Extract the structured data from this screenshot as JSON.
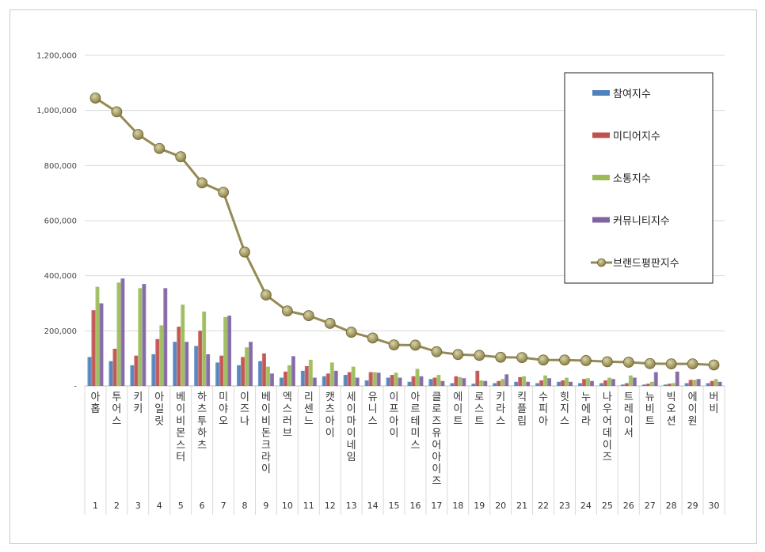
{
  "chart_data": {
    "type": "bar",
    "title": "",
    "xlabel": "",
    "ylabel": "",
    "ylim": [
      0,
      1200000
    ],
    "yticks": [
      0,
      200000,
      400000,
      600000,
      800000,
      1000000,
      1200000
    ],
    "ytick_labels": [
      "-",
      "200,000",
      "400,000",
      "600,000",
      "800,000",
      "1,000,000",
      "1,200,000"
    ],
    "grid": true,
    "legend_position": "right",
    "categories": [
      "아홉",
      "투어스",
      "키키",
      "아일릿",
      "베이비몬스터",
      "하츠투하츠",
      "미야오",
      "이즈나",
      "베이비돈크라이",
      "엑스러브",
      "리센느",
      "캣츠아이",
      "세이마이네임",
      "유니스",
      "이프아이",
      "아르테미스",
      "클로즈유어아이즈",
      "에이트",
      "로스트",
      "키라스",
      "킥플립",
      "수피아",
      "힛지스",
      "누에라",
      "나우어데이즈",
      "트레이서",
      "뉴비트",
      "빅오션",
      "에이원",
      "버비"
    ],
    "ranks": [
      "1",
      "2",
      "3",
      "4",
      "5",
      "6",
      "7",
      "8",
      "9",
      "10",
      "11",
      "12",
      "13",
      "14",
      "15",
      "16",
      "17",
      "18",
      "19",
      "20",
      "21",
      "22",
      "23",
      "24",
      "25",
      "26",
      "27",
      "28",
      "29",
      "30"
    ],
    "series": [
      {
        "name": "참여지수",
        "type": "bar",
        "color": "#4F81BD",
        "values": [
          105000,
          90000,
          75000,
          115000,
          160000,
          145000,
          85000,
          75000,
          90000,
          30000,
          55000,
          35000,
          40000,
          20000,
          30000,
          15000,
          25000,
          10000,
          8000,
          10000,
          15000,
          10000,
          15000,
          10000,
          10000,
          5000,
          5000,
          5000,
          10000,
          10000
        ]
      },
      {
        "name": "미디어지수",
        "type": "bar",
        "color": "#C0504D",
        "values": [
          275000,
          135000,
          110000,
          170000,
          215000,
          200000,
          110000,
          105000,
          118000,
          52000,
          72000,
          45000,
          50000,
          50000,
          40000,
          35000,
          30000,
          35000,
          55000,
          18000,
          32000,
          20000,
          20000,
          25000,
          20000,
          10000,
          8000,
          8000,
          22000,
          18000
        ]
      },
      {
        "name": "소통지수",
        "type": "bar",
        "color": "#9BBB59",
        "values": [
          360000,
          375000,
          355000,
          220000,
          295000,
          270000,
          250000,
          140000,
          70000,
          75000,
          95000,
          85000,
          70000,
          50000,
          48000,
          62000,
          40000,
          32000,
          20000,
          25000,
          35000,
          38000,
          30000,
          28000,
          30000,
          38000,
          15000,
          10000,
          22000,
          25000
        ]
      },
      {
        "name": "커뮤니티지수",
        "type": "bar",
        "color": "#8064A2",
        "values": [
          300000,
          390000,
          370000,
          355000,
          160000,
          115000,
          255000,
          160000,
          45000,
          108000,
          30000,
          55000,
          30000,
          48000,
          30000,
          35000,
          18000,
          28000,
          18000,
          42000,
          15000,
          28000,
          15000,
          18000,
          25000,
          30000,
          50000,
          52000,
          25000,
          15000
        ]
      },
      {
        "name": "브랜드평판지수",
        "type": "line",
        "color": "#948A54",
        "values": [
          1045000,
          995000,
          913000,
          862000,
          832000,
          737000,
          703000,
          486000,
          330000,
          272000,
          255000,
          227000,
          195000,
          174000,
          149000,
          148000,
          124000,
          114000,
          111000,
          104000,
          103000,
          94000,
          94000,
          92000,
          88000,
          86000,
          81000,
          80000,
          80000,
          76000
        ]
      }
    ]
  }
}
